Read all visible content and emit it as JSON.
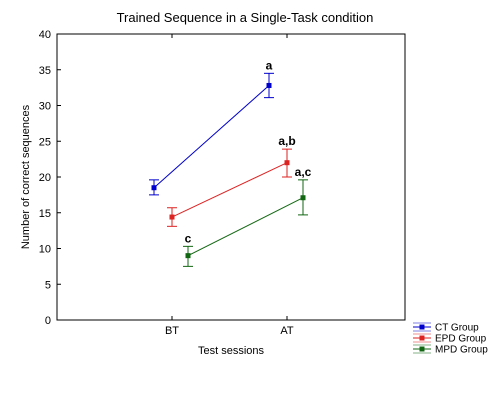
{
  "chart_data": {
    "type": "line",
    "title": "Trained Sequence in a Single-Task condition",
    "xlabel": "Test sessions",
    "ylabel": "Number of correct sequences",
    "categories": [
      "BT",
      "AT"
    ],
    "ylim": [
      0,
      40
    ],
    "yticks": [
      0,
      5,
      10,
      15,
      20,
      25,
      30,
      35,
      40
    ],
    "grid": false,
    "legend_position": "bottom-right, outside plot",
    "series": [
      {
        "name": "CT Group",
        "color": "#0000cc",
        "values": [
          18.5,
          32.8
        ],
        "error": [
          [
            17.5,
            19.6
          ],
          [
            31.1,
            34.5
          ]
        ],
        "annotations": [
          "",
          "a"
        ]
      },
      {
        "name": "EPD Group",
        "color": "#dd2222",
        "values": [
          14.4,
          22.0
        ],
        "error": [
          [
            13.1,
            15.7
          ],
          [
            20.0,
            23.9
          ]
        ],
        "annotations": [
          "",
          "a,b"
        ]
      },
      {
        "name": "MPD Group",
        "color": "#116611",
        "values": [
          9.0,
          17.1
        ],
        "error": [
          [
            7.5,
            10.3
          ],
          [
            14.7,
            19.6
          ]
        ],
        "annotations": [
          "c",
          "a,c"
        ]
      }
    ]
  }
}
